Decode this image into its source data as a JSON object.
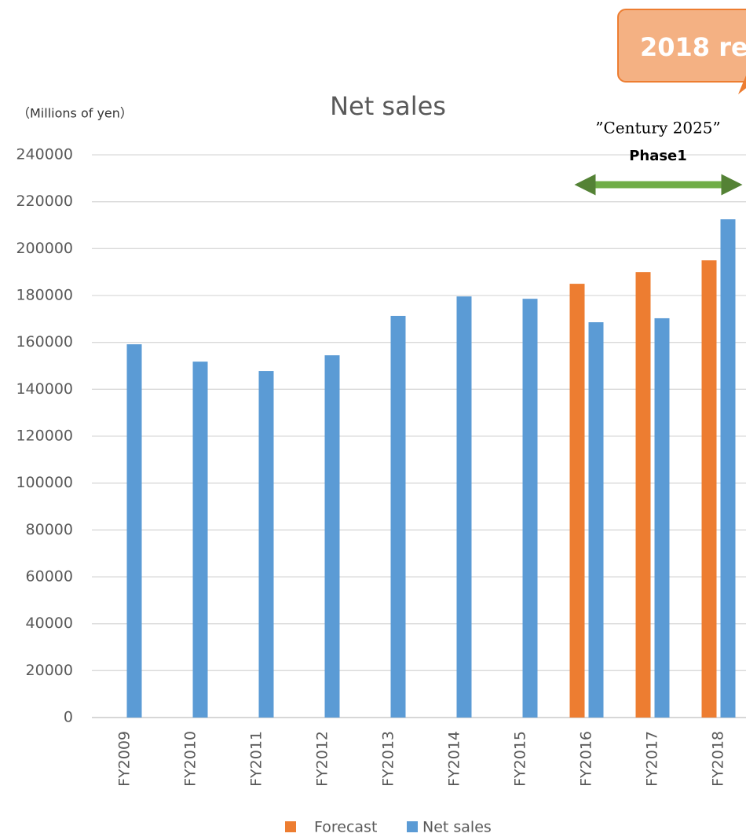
{
  "chart_data": {
    "type": "bar",
    "title": "Net sales",
    "y_label": "（Millions of yen）",
    "annotations": [
      "2018 re",
      "”Century 2025”",
      "Phase1"
    ],
    "categories": [
      "FY2009",
      "FY2010",
      "FY2011",
      "FY2012",
      "FY2013",
      "FY2014",
      "FY2015",
      "FY2016",
      "FY2017",
      "FY2018"
    ],
    "series": [
      {
        "name": "Forecast",
        "color": "#ed7d31",
        "values": [
          null,
          null,
          null,
          null,
          null,
          null,
          null,
          185000,
          190000,
          195000
        ]
      },
      {
        "name": "Net sales",
        "color": "#5b9bd5",
        "values": [
          159200,
          151800,
          147800,
          154500,
          171300,
          179600,
          178600,
          168600,
          170300,
          212500
        ]
      }
    ],
    "ylim": [
      0,
      240000
    ],
    "yticks": [
      0,
      20000,
      40000,
      60000,
      80000,
      100000,
      120000,
      140000,
      160000,
      180000,
      200000,
      220000,
      240000
    ],
    "grid": true,
    "legend": "bottom"
  }
}
